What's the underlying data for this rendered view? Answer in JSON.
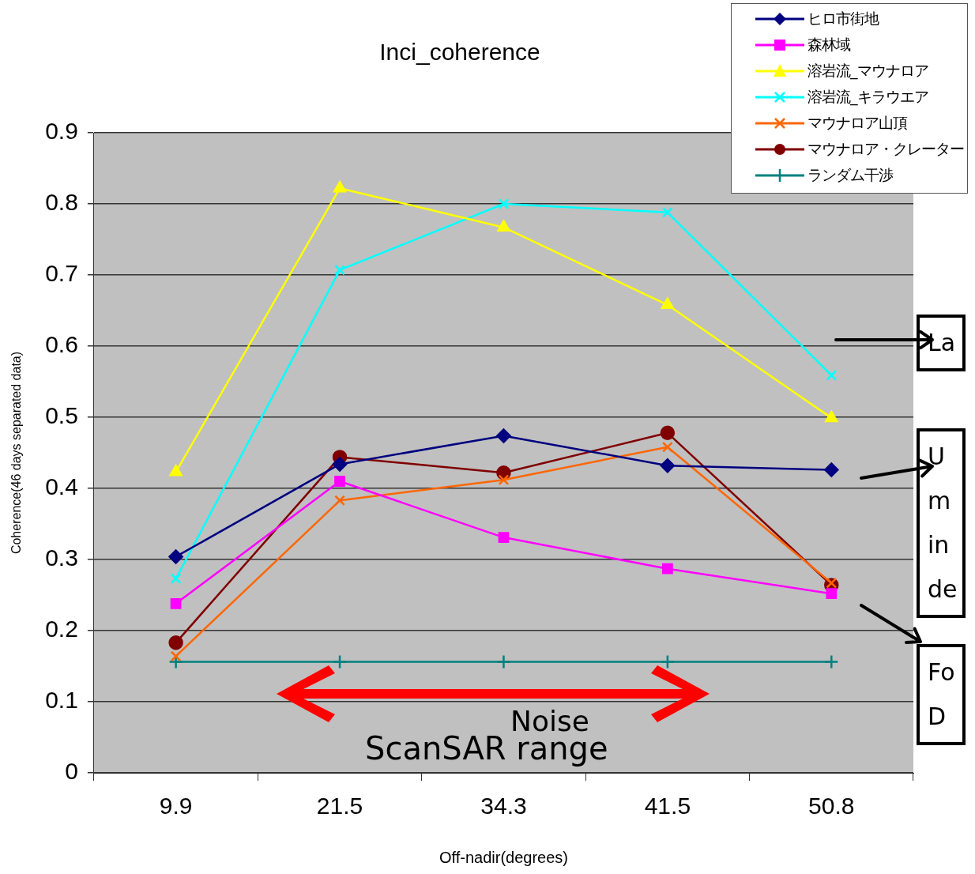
{
  "chart_data": {
    "type": "line",
    "title": "Inci_coherence",
    "xlabel": "Off-nadir(degrees)",
    "ylabel": "Coherence(46 days separated data)",
    "categories": [
      "9.9",
      "21.5",
      "34.3",
      "41.5",
      "50.8"
    ],
    "ylim": [
      0,
      0.9
    ],
    "yticks": [
      {
        "value": 0,
        "label": "0"
      },
      0.1,
      0.2,
      0.3,
      0.4,
      0.5,
      0.6,
      0.7,
      0.8,
      0.9
    ],
    "grid": "y",
    "legend": "top right",
    "series": [
      {
        "name": "ヒロ市街地",
        "color": "#000080",
        "marker": "diamond",
        "values": [
          0.304,
          0.434,
          0.474,
          0.432,
          0.426
        ]
      },
      {
        "name": "森林域",
        "color": "#ff00ff",
        "marker": "square",
        "values": [
          0.238,
          0.41,
          0.331,
          0.287,
          0.252
        ]
      },
      {
        "name": "溶岩流_マウナロア",
        "color": "#ffff00",
        "marker": "triangle",
        "values": [
          0.423,
          0.822,
          0.767,
          0.658,
          0.499
        ]
      },
      {
        "name": "溶岩流_キラウエア",
        "color": "#00ffff",
        "marker": "cross",
        "values": [
          0.273,
          0.707,
          0.8,
          0.788,
          0.559
        ]
      },
      {
        "name": "マウナロア山頂",
        "color": "#ff6600",
        "marker": "cross",
        "values": [
          0.164,
          0.383,
          0.412,
          0.458,
          0.267
        ]
      },
      {
        "name": "マウナロア・クレーター",
        "color": "#800000",
        "marker": "circle",
        "values": [
          0.183,
          0.444,
          0.422,
          0.478,
          0.264
        ]
      },
      {
        "name": "ランダム干渉",
        "color": "#008080",
        "marker": "plus",
        "values": [
          0.156,
          0.156,
          0.156,
          0.156,
          0.156
        ]
      }
    ],
    "annotations": [
      "Noise",
      "ScanSAR range",
      "La",
      "U\nm\nin\nde",
      "Fo\nD"
    ]
  }
}
